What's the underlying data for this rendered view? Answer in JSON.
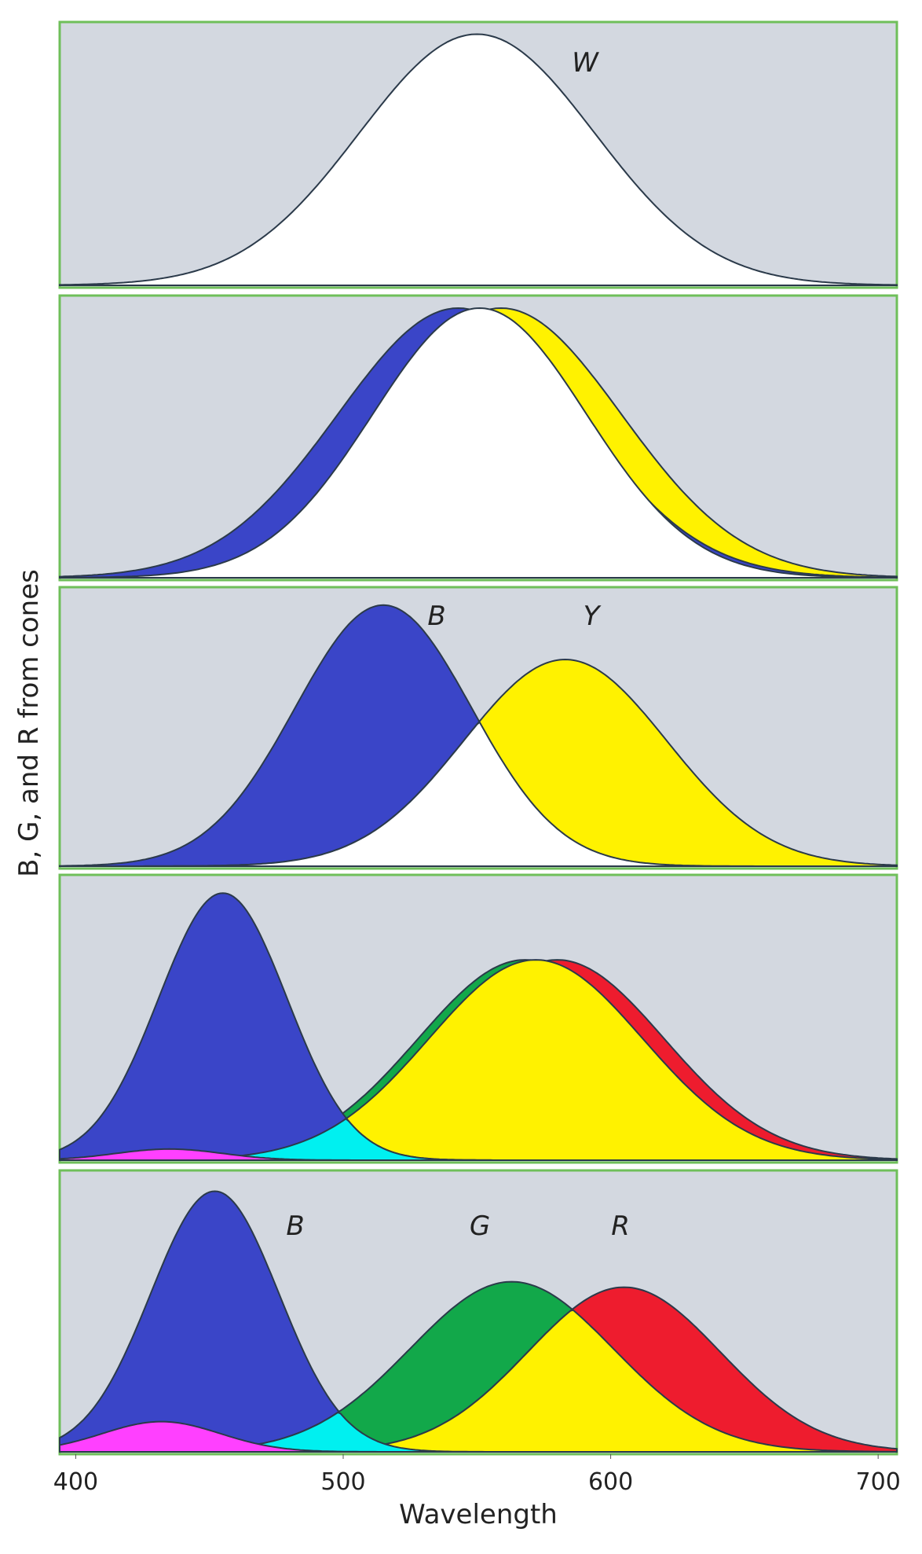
{
  "x_axis": {
    "label": "Wavelength",
    "xlim": [
      394,
      707
    ],
    "ticks": [
      400,
      500,
      600,
      700
    ]
  },
  "y_axis": {
    "label": "B, G, and R from cones"
  },
  "panels": [
    {
      "labels": [
        "W"
      ]
    },
    {},
    {
      "labels": [
        "B",
        "Y"
      ]
    },
    {},
    {
      "labels": [
        "B",
        "G",
        "R"
      ]
    }
  ]
}
